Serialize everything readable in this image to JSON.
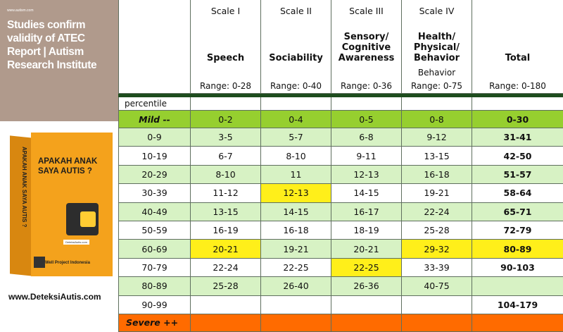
{
  "promo": {
    "site": "www.autism.com",
    "headline": "Studies confirm validity of ATEC Report | Autism Research Institute"
  },
  "book": {
    "title": "APAKAH ANAK SAYA AUTIS ?",
    "spine": "APAKAH ANAK SAYA AUTIS ?",
    "small": "DeteksiAutis.com",
    "brand": "Well Project Indonesia"
  },
  "footer_url": "www.DeteksiAutis.com",
  "table": {
    "scales": [
      "Scale I",
      "Scale II",
      "Scale III",
      "Scale IV"
    ],
    "names": [
      "Speech",
      "Sociability",
      "Sensory/ Cognitive Awareness",
      "Health/ Physical/ Behavior",
      "Total"
    ],
    "sub_label": "Behavior",
    "ranges": [
      "Range: 0-28",
      "Range: 0-40",
      "Range: 0-36",
      "Range: 0-75",
      "Range: 0-180"
    ],
    "percentile_label": "percentile",
    "mild": {
      "label": "Mild --",
      "values": [
        "0-2",
        "0-4",
        "0-5",
        "0-8",
        "0-30"
      ]
    },
    "rows": [
      {
        "pct": "0-9",
        "values": [
          "3-5",
          "5-7",
          "6-8",
          "9-12",
          "31-41"
        ]
      },
      {
        "pct": "10-19",
        "values": [
          "6-7",
          "8-10",
          "9-11",
          "13-15",
          "42-50"
        ]
      },
      {
        "pct": "20-29",
        "values": [
          "8-10",
          "11",
          "12-13",
          "16-18",
          "51-57"
        ]
      },
      {
        "pct": "30-39",
        "values": [
          "11-12",
          "12-13",
          "14-15",
          "19-21",
          "58-64"
        ]
      },
      {
        "pct": "40-49",
        "values": [
          "13-15",
          "14-15",
          "16-17",
          "22-24",
          "65-71"
        ]
      },
      {
        "pct": "50-59",
        "values": [
          "16-19",
          "16-18",
          "18-19",
          "25-28",
          "72-79"
        ]
      },
      {
        "pct": "60-69",
        "values": [
          "20-21",
          "19-21",
          "20-21",
          "29-32",
          "80-89"
        ]
      },
      {
        "pct": "70-79",
        "values": [
          "22-24",
          "22-25",
          "22-25",
          "33-39",
          "90-103"
        ]
      },
      {
        "pct": "80-89",
        "values": [
          "25-28",
          "26-40",
          "26-36",
          "40-75",
          ""
        ]
      },
      {
        "pct": "90-99",
        "values": [
          "",
          "",
          "",
          "",
          "104-179"
        ]
      }
    ],
    "severe": {
      "label": "Severe ++"
    },
    "colors": {
      "green_band": "#d7f2c4",
      "mild": "#96cf2f",
      "severe": "#ff6b00",
      "highlight": "#ffef1a",
      "divider": "#1e4d1e"
    }
  }
}
